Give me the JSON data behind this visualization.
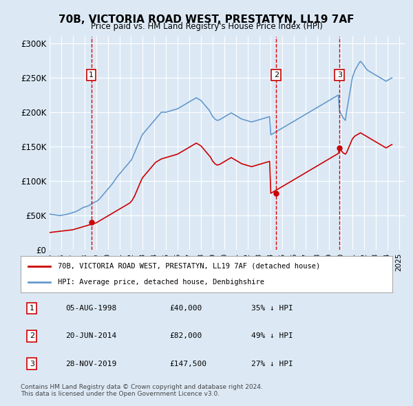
{
  "title": "70B, VICTORIA ROAD WEST, PRESTATYN, LL19 7AF",
  "subtitle": "Price paid vs. HM Land Registry's House Price Index (HPI)",
  "ylabel_ticks": [
    "£0",
    "£50K",
    "£100K",
    "£150K",
    "£200K",
    "£250K",
    "£300K"
  ],
  "ytick_vals": [
    0,
    50000,
    100000,
    150000,
    200000,
    250000,
    300000
  ],
  "ylim": [
    0,
    310000
  ],
  "xlim_start": 1995.0,
  "xlim_end": 2025.5,
  "background_color": "#dce9f5",
  "plot_bg_color": "#dce9f5",
  "grid_color": "#ffffff",
  "red_line_color": "#cc0000",
  "blue_line_color": "#6699cc",
  "sale_marker_color": "#cc0000",
  "sale_vline_color": "#dd0000",
  "legend_red_label": "70B, VICTORIA ROAD WEST, PRESTATYN, LL19 7AF (detached house)",
  "legend_blue_label": "HPI: Average price, detached house, Denbighshire",
  "footer_line1": "Contains HM Land Registry data © Crown copyright and database right 2024.",
  "footer_line2": "This data is licensed under the Open Government Licence v3.0.",
  "sales": [
    {
      "num": 1,
      "date": "05-AUG-1998",
      "price": 40000,
      "pct": "35%",
      "year": 1998.58
    },
    {
      "num": 2,
      "date": "20-JUN-2014",
      "price": 82000,
      "pct": "49%",
      "year": 2014.46
    },
    {
      "num": 3,
      "date": "28-NOV-2019",
      "price": 147500,
      "pct": "27%",
      "year": 2019.9
    }
  ],
  "hpi_data": {
    "years": [
      1995.0,
      1995.1,
      1995.2,
      1995.3,
      1995.4,
      1995.5,
      1995.6,
      1995.7,
      1995.8,
      1995.9,
      1996.0,
      1996.1,
      1996.2,
      1996.3,
      1996.4,
      1996.5,
      1996.6,
      1996.7,
      1996.8,
      1996.9,
      1997.0,
      1997.1,
      1997.2,
      1997.3,
      1997.4,
      1997.5,
      1997.6,
      1997.7,
      1997.8,
      1997.9,
      1998.0,
      1998.1,
      1998.2,
      1998.3,
      1998.4,
      1998.5,
      1998.6,
      1998.7,
      1998.8,
      1998.9,
      1999.0,
      1999.1,
      1999.2,
      1999.3,
      1999.4,
      1999.5,
      1999.6,
      1999.7,
      1999.8,
      1999.9,
      2000.0,
      2000.1,
      2000.2,
      2000.3,
      2000.4,
      2000.5,
      2000.6,
      2000.7,
      2000.8,
      2000.9,
      2001.0,
      2001.1,
      2001.2,
      2001.3,
      2001.4,
      2001.5,
      2001.6,
      2001.7,
      2001.8,
      2001.9,
      2002.0,
      2002.1,
      2002.2,
      2002.3,
      2002.4,
      2002.5,
      2002.6,
      2002.7,
      2002.8,
      2002.9,
      2003.0,
      2003.1,
      2003.2,
      2003.3,
      2003.4,
      2003.5,
      2003.6,
      2003.7,
      2003.8,
      2003.9,
      2004.0,
      2004.1,
      2004.2,
      2004.3,
      2004.4,
      2004.5,
      2004.6,
      2004.7,
      2004.8,
      2004.9,
      2005.0,
      2005.1,
      2005.2,
      2005.3,
      2005.4,
      2005.5,
      2005.6,
      2005.7,
      2005.8,
      2005.9,
      2006.0,
      2006.1,
      2006.2,
      2006.3,
      2006.4,
      2006.5,
      2006.6,
      2006.7,
      2006.8,
      2006.9,
      2007.0,
      2007.1,
      2007.2,
      2007.3,
      2007.4,
      2007.5,
      2007.6,
      2007.7,
      2007.8,
      2007.9,
      2008.0,
      2008.1,
      2008.2,
      2008.3,
      2008.4,
      2008.5,
      2008.6,
      2008.7,
      2008.8,
      2008.9,
      2009.0,
      2009.1,
      2009.2,
      2009.3,
      2009.4,
      2009.5,
      2009.6,
      2009.7,
      2009.8,
      2009.9,
      2010.0,
      2010.1,
      2010.2,
      2010.3,
      2010.4,
      2010.5,
      2010.6,
      2010.7,
      2010.8,
      2010.9,
      2011.0,
      2011.1,
      2011.2,
      2011.3,
      2011.4,
      2011.5,
      2011.6,
      2011.7,
      2011.8,
      2011.9,
      2012.0,
      2012.1,
      2012.2,
      2012.3,
      2012.4,
      2012.5,
      2012.6,
      2012.7,
      2012.8,
      2012.9,
      2013.0,
      2013.1,
      2013.2,
      2013.3,
      2013.4,
      2013.5,
      2013.6,
      2013.7,
      2013.8,
      2013.9,
      2014.0,
      2014.1,
      2014.2,
      2014.3,
      2014.4,
      2014.5,
      2014.6,
      2014.7,
      2014.8,
      2014.9,
      2015.0,
      2015.1,
      2015.2,
      2015.3,
      2015.4,
      2015.5,
      2015.6,
      2015.7,
      2015.8,
      2015.9,
      2016.0,
      2016.1,
      2016.2,
      2016.3,
      2016.4,
      2016.5,
      2016.6,
      2016.7,
      2016.8,
      2016.9,
      2017.0,
      2017.1,
      2017.2,
      2017.3,
      2017.4,
      2017.5,
      2017.6,
      2017.7,
      2017.8,
      2017.9,
      2018.0,
      2018.1,
      2018.2,
      2018.3,
      2018.4,
      2018.5,
      2018.6,
      2018.7,
      2018.8,
      2018.9,
      2019.0,
      2019.1,
      2019.2,
      2019.3,
      2019.4,
      2019.5,
      2019.6,
      2019.7,
      2019.8,
      2019.9,
      2020.0,
      2020.1,
      2020.2,
      2020.3,
      2020.4,
      2020.5,
      2020.6,
      2020.7,
      2020.8,
      2020.9,
      2021.0,
      2021.1,
      2021.2,
      2021.3,
      2021.4,
      2021.5,
      2021.6,
      2021.7,
      2021.8,
      2021.9,
      2022.0,
      2022.1,
      2022.2,
      2022.3,
      2022.4,
      2022.5,
      2022.6,
      2022.7,
      2022.8,
      2022.9,
      2023.0,
      2023.1,
      2023.2,
      2023.3,
      2023.4,
      2023.5,
      2023.6,
      2023.7,
      2023.8,
      2023.9,
      2024.0,
      2024.1,
      2024.2,
      2024.3,
      2024.4
    ],
    "values": [
      52000,
      51500,
      51200,
      51000,
      50800,
      50500,
      50200,
      50000,
      49800,
      49600,
      50000,
      50200,
      50500,
      50800,
      51000,
      51500,
      52000,
      52500,
      53000,
      53500,
      54000,
      54500,
      55000,
      55800,
      56500,
      57500,
      58500,
      59500,
      60500,
      61500,
      62000,
      62500,
      63000,
      63500,
      64500,
      65500,
      66500,
      67500,
      68500,
      69500,
      70000,
      71000,
      72500,
      74000,
      76000,
      78000,
      80000,
      82000,
      84000,
      86000,
      88000,
      90000,
      92000,
      94000,
      96000,
      98500,
      101000,
      103500,
      106000,
      108000,
      110000,
      112000,
      114000,
      116000,
      118000,
      120000,
      122000,
      124000,
      126000,
      128000,
      130000,
      133000,
      137000,
      141000,
      145000,
      149000,
      153000,
      157000,
      161000,
      165000,
      168000,
      170000,
      172000,
      174000,
      176000,
      178000,
      180000,
      182000,
      184000,
      186000,
      188000,
      190000,
      192000,
      194000,
      196000,
      198000,
      200000,
      200000,
      200000,
      200000,
      200000,
      200500,
      201000,
      201500,
      202000,
      202500,
      203000,
      203500,
      204000,
      204500,
      205000,
      206000,
      207000,
      208000,
      209000,
      210000,
      211000,
      212000,
      213000,
      214000,
      215000,
      216000,
      217000,
      218000,
      219000,
      220000,
      221000,
      220000,
      219000,
      218000,
      217000,
      215000,
      213000,
      211000,
      209000,
      207000,
      205000,
      203000,
      200000,
      197000,
      194000,
      192000,
      190000,
      189000,
      188000,
      188500,
      189000,
      190000,
      191000,
      192000,
      193000,
      194000,
      195000,
      196000,
      197000,
      198000,
      199000,
      198000,
      197000,
      196000,
      195000,
      194000,
      193000,
      192000,
      191000,
      190000,
      189500,
      189000,
      188500,
      188000,
      187500,
      187000,
      186500,
      186000,
      186000,
      186500,
      187000,
      187500,
      188000,
      188500,
      189000,
      189500,
      190000,
      190500,
      191000,
      191500,
      192000,
      192500,
      193000,
      193500,
      167000,
      168000,
      169000,
      170000,
      171000,
      172000,
      173000,
      174000,
      175000,
      176000,
      177000,
      178000,
      179000,
      180000,
      181000,
      182000,
      183000,
      184000,
      185000,
      186000,
      187000,
      188000,
      189000,
      190000,
      191000,
      192000,
      193000,
      194000,
      195000,
      196000,
      197000,
      198000,
      199000,
      200000,
      201000,
      202000,
      203000,
      204000,
      205000,
      206000,
      207000,
      208000,
      209000,
      210000,
      211000,
      212000,
      213000,
      214000,
      215000,
      216000,
      217000,
      218000,
      219000,
      220000,
      221000,
      222000,
      223000,
      224000,
      225000,
      202000,
      198000,
      195000,
      192000,
      190000,
      188000,
      200000,
      210000,
      220000,
      230000,
      240000,
      250000,
      255000,
      260000,
      263000,
      266000,
      269000,
      272000,
      274000,
      272000,
      270000,
      268000,
      265000,
      263000,
      261000,
      260000,
      259000,
      258000,
      257000,
      256000,
      255000,
      254000,
      253000,
      252000,
      251000,
      250000,
      249000,
      248000,
      247000,
      246000,
      245000,
      246000,
      247000,
      248000,
      249000,
      250000
    ]
  },
  "price_paid_data": {
    "years": [
      1995.0,
      1995.1,
      1995.2,
      1995.3,
      1995.4,
      1995.5,
      1995.6,
      1995.7,
      1995.8,
      1995.9,
      1996.0,
      1996.1,
      1996.2,
      1996.3,
      1996.4,
      1996.5,
      1996.6,
      1996.7,
      1996.8,
      1996.9,
      1997.0,
      1997.1,
      1997.2,
      1997.3,
      1997.4,
      1997.5,
      1997.6,
      1997.7,
      1997.8,
      1997.9,
      1998.0,
      1998.1,
      1998.2,
      1998.3,
      1998.4,
      1998.5,
      1998.6,
      1998.7,
      1998.8,
      1998.9,
      1999.0,
      1999.1,
      1999.2,
      1999.3,
      1999.4,
      1999.5,
      1999.6,
      1999.7,
      1999.8,
      1999.9,
      2000.0,
      2000.1,
      2000.2,
      2000.3,
      2000.4,
      2000.5,
      2000.6,
      2000.7,
      2000.8,
      2000.9,
      2001.0,
      2001.1,
      2001.2,
      2001.3,
      2001.4,
      2001.5,
      2001.6,
      2001.7,
      2001.8,
      2001.9,
      2002.0,
      2002.1,
      2002.2,
      2002.3,
      2002.4,
      2002.5,
      2002.6,
      2002.7,
      2002.8,
      2002.9,
      2003.0,
      2003.1,
      2003.2,
      2003.3,
      2003.4,
      2003.5,
      2003.6,
      2003.7,
      2003.8,
      2003.9,
      2004.0,
      2004.1,
      2004.2,
      2004.3,
      2004.4,
      2004.5,
      2004.6,
      2004.7,
      2004.8,
      2004.9,
      2005.0,
      2005.1,
      2005.2,
      2005.3,
      2005.4,
      2005.5,
      2005.6,
      2005.7,
      2005.8,
      2005.9,
      2006.0,
      2006.1,
      2006.2,
      2006.3,
      2006.4,
      2006.5,
      2006.6,
      2006.7,
      2006.8,
      2006.9,
      2007.0,
      2007.1,
      2007.2,
      2007.3,
      2007.4,
      2007.5,
      2007.6,
      2007.7,
      2007.8,
      2007.9,
      2008.0,
      2008.1,
      2008.2,
      2008.3,
      2008.4,
      2008.5,
      2008.6,
      2008.7,
      2008.8,
      2008.9,
      2009.0,
      2009.1,
      2009.2,
      2009.3,
      2009.4,
      2009.5,
      2009.6,
      2009.7,
      2009.8,
      2009.9,
      2010.0,
      2010.1,
      2010.2,
      2010.3,
      2010.4,
      2010.5,
      2010.6,
      2010.7,
      2010.8,
      2010.9,
      2011.0,
      2011.1,
      2011.2,
      2011.3,
      2011.4,
      2011.5,
      2011.6,
      2011.7,
      2011.8,
      2011.9,
      2012.0,
      2012.1,
      2012.2,
      2012.3,
      2012.4,
      2012.5,
      2012.6,
      2012.7,
      2012.8,
      2012.9,
      2013.0,
      2013.1,
      2013.2,
      2013.3,
      2013.4,
      2013.5,
      2013.6,
      2013.7,
      2013.8,
      2013.9,
      2014.0,
      2014.1,
      2014.2,
      2014.3,
      2014.4,
      2014.5,
      2014.6,
      2014.7,
      2014.8,
      2014.9,
      2015.0,
      2015.1,
      2015.2,
      2015.3,
      2015.4,
      2015.5,
      2015.6,
      2015.7,
      2015.8,
      2015.9,
      2016.0,
      2016.1,
      2016.2,
      2016.3,
      2016.4,
      2016.5,
      2016.6,
      2016.7,
      2016.8,
      2016.9,
      2017.0,
      2017.1,
      2017.2,
      2017.3,
      2017.4,
      2017.5,
      2017.6,
      2017.7,
      2017.8,
      2017.9,
      2018.0,
      2018.1,
      2018.2,
      2018.3,
      2018.4,
      2018.5,
      2018.6,
      2018.7,
      2018.8,
      2018.9,
      2019.0,
      2019.1,
      2019.2,
      2019.3,
      2019.4,
      2019.5,
      2019.6,
      2019.7,
      2019.8,
      2019.9,
      2020.0,
      2020.1,
      2020.2,
      2020.3,
      2020.4,
      2020.5,
      2020.6,
      2020.7,
      2020.8,
      2020.9,
      2021.0,
      2021.1,
      2021.2,
      2021.3,
      2021.4,
      2021.5,
      2021.6,
      2021.7,
      2021.8,
      2021.9,
      2022.0,
      2022.1,
      2022.2,
      2022.3,
      2022.4,
      2022.5,
      2022.6,
      2022.7,
      2022.8,
      2022.9,
      2023.0,
      2023.1,
      2023.2,
      2023.3,
      2023.4,
      2023.5,
      2023.6,
      2023.7,
      2023.8,
      2023.9,
      2024.0,
      2024.1,
      2024.2,
      2024.3,
      2024.4
    ],
    "values": [
      25000,
      25200,
      25400,
      25600,
      25800,
      26000,
      26200,
      26400,
      26600,
      26800,
      27000,
      27200,
      27400,
      27600,
      27800,
      28000,
      28200,
      28400,
      28600,
      28800,
      29000,
      29500,
      30000,
      30500,
      31000,
      31500,
      32000,
      32500,
      33000,
      33500,
      34000,
      34500,
      35000,
      35500,
      36000,
      36500,
      37000,
      37500,
      38000,
      38500,
      39000,
      40000,
      41000,
      42000,
      43000,
      44000,
      45000,
      46000,
      47000,
      48000,
      49000,
      50000,
      51000,
      52000,
      53000,
      54000,
      55000,
      56000,
      57000,
      58000,
      59000,
      60000,
      61000,
      62000,
      63000,
      64000,
      65000,
      66000,
      67000,
      68000,
      70000,
      72000,
      75000,
      78000,
      82000,
      86000,
      90000,
      94000,
      98000,
      102000,
      105000,
      107000,
      109000,
      111000,
      113000,
      115000,
      117000,
      119000,
      121000,
      123000,
      125000,
      127000,
      128000,
      129000,
      130000,
      131000,
      132000,
      132500,
      133000,
      133500,
      134000,
      134500,
      135000,
      135500,
      136000,
      136500,
      137000,
      137500,
      138000,
      138500,
      139000,
      140000,
      141000,
      142000,
      143000,
      144000,
      145000,
      146000,
      147000,
      148000,
      149000,
      150000,
      151000,
      152000,
      153000,
      154000,
      155000,
      154000,
      153000,
      152000,
      151000,
      149000,
      147000,
      145000,
      143000,
      141000,
      139000,
      137000,
      135000,
      132000,
      129000,
      127000,
      125000,
      124000,
      123000,
      123500,
      124000,
      125000,
      126000,
      127000,
      128000,
      129000,
      130000,
      131000,
      132000,
      133000,
      134000,
      133000,
      132000,
      131000,
      130000,
      129000,
      128000,
      127000,
      126000,
      125000,
      124500,
      124000,
      123500,
      123000,
      122500,
      122000,
      121500,
      121000,
      121000,
      121500,
      122000,
      122500,
      123000,
      123500,
      124000,
      124500,
      125000,
      125500,
      126000,
      126500,
      127000,
      127500,
      128000,
      128500,
      82000,
      83000,
      84000,
      85000,
      86000,
      87000,
      88000,
      89000,
      90000,
      91000,
      92000,
      93000,
      94000,
      95000,
      96000,
      97000,
      98000,
      99000,
      100000,
      101000,
      102000,
      103000,
      104000,
      105000,
      106000,
      107000,
      108000,
      109000,
      110000,
      111000,
      112000,
      113000,
      114000,
      115000,
      116000,
      117000,
      118000,
      119000,
      120000,
      121000,
      122000,
      123000,
      124000,
      125000,
      126000,
      127000,
      128000,
      129000,
      130000,
      131000,
      132000,
      133000,
      134000,
      135000,
      136000,
      137000,
      138000,
      139000,
      140000,
      147500,
      145000,
      143000,
      141000,
      140000,
      139000,
      141000,
      145000,
      149000,
      153000,
      157000,
      161000,
      163000,
      165000,
      166000,
      167000,
      168000,
      169000,
      170000,
      169000,
      168000,
      167000,
      166000,
      165000,
      164000,
      163000,
      162000,
      161000,
      160000,
      159000,
      158000,
      157000,
      156000,
      155000,
      154000,
      153000,
      152000,
      151000,
      150000,
      149000,
      148000,
      149000,
      150000,
      151000,
      152000,
      153000
    ]
  }
}
